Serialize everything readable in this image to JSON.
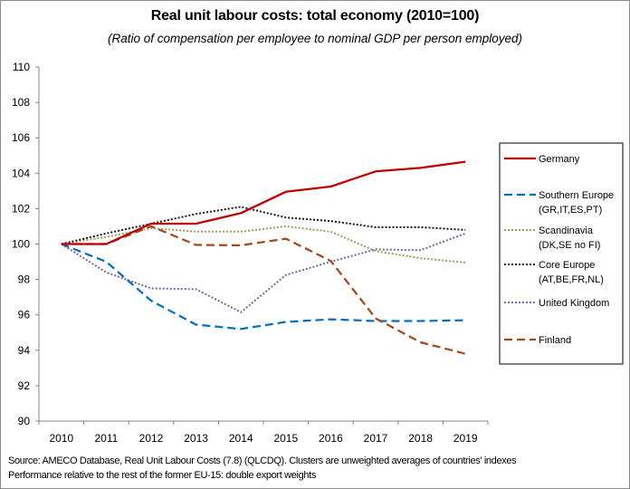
{
  "chart_data": {
    "type": "line",
    "title": "Real unit labour costs: total economy (2010=100)",
    "subtitle": "(Ratio of compensation per employee to nominal GDP per person employed)",
    "xlabel": "",
    "ylabel": "",
    "categories": [
      "2010",
      "2011",
      "2012",
      "2013",
      "2014",
      "2015",
      "2016",
      "2017",
      "2018",
      "2019"
    ],
    "ylim": [
      90,
      110
    ],
    "yticks": [
      90,
      92,
      94,
      96,
      98,
      100,
      102,
      104,
      106,
      108,
      110
    ],
    "grid": false,
    "legend_position": "right",
    "series": [
      {
        "name": "Germany",
        "label_lines": [
          "Germany"
        ],
        "color": "#c00000",
        "style": "solid",
        "values": [
          100.0,
          100.0,
          101.15,
          101.15,
          101.75,
          102.95,
          103.25,
          104.1,
          104.3,
          104.65
        ]
      },
      {
        "name": "Southern Europe (GR,IT,ES,PT)",
        "label_lines": [
          "Southern Europe",
          "(GR,IT,ES,PT)"
        ],
        "color": "#0070c0",
        "style": "dashed",
        "values": [
          100.0,
          99.0,
          96.8,
          95.45,
          95.2,
          95.6,
          95.75,
          95.65,
          95.65,
          95.7
        ]
      },
      {
        "name": "Scandinavia (DK,SE no FI)",
        "label_lines": [
          "Scandinavia",
          "(DK,SE no FI)"
        ],
        "color": "#9ba05a",
        "style": "dotted",
        "values": [
          100.0,
          100.4,
          100.9,
          100.7,
          100.7,
          101.0,
          100.7,
          99.6,
          99.2,
          98.95
        ]
      },
      {
        "name": "Core Europe (AT,BE,FR,NL)",
        "label_lines": [
          "Core Europe",
          "(AT,BE,FR,NL)"
        ],
        "color": "#1a1a1a",
        "style": "dotted",
        "values": [
          100.0,
          100.6,
          101.15,
          101.7,
          102.1,
          101.5,
          101.3,
          100.95,
          100.95,
          100.8
        ]
      },
      {
        "name": "United Kingdom",
        "label_lines": [
          "United Kingdom"
        ],
        "color": "#8064a2",
        "style": "dotted",
        "values": [
          100.0,
          98.4,
          97.5,
          97.45,
          96.15,
          98.25,
          99.0,
          99.7,
          99.65,
          100.6
        ]
      },
      {
        "name": "Finland",
        "label_lines": [
          "Finland"
        ],
        "color": "#a5481a",
        "style": "dashed",
        "values": [
          100.0,
          100.0,
          101.0,
          99.95,
          99.93,
          100.3,
          99.05,
          95.8,
          94.45,
          93.8
        ]
      }
    ]
  },
  "footer": {
    "source_line": "Source: AMECO Database, Real Unit Labour Costs (7.8) (QLCDQ). Clusters are unweighted averages of countries' indexes",
    "note_line": "Performance relative to the rest of the former EU-15: double export weights"
  }
}
